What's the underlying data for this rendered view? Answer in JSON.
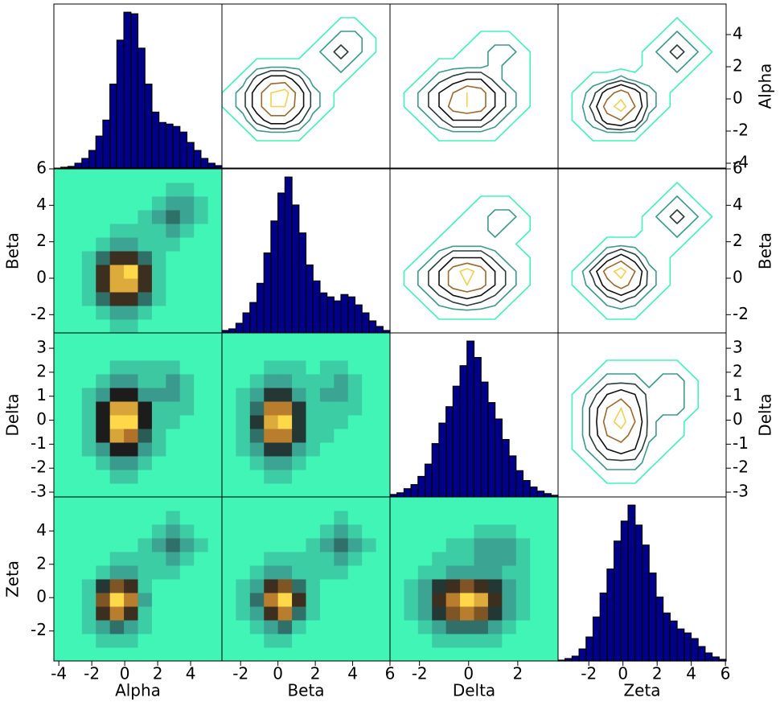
{
  "chart_data": {
    "type": "pairplot",
    "hist_color": "#00008b",
    "cmap": [
      "#40f5b5",
      "#3a9a8e",
      "#1c1c1c",
      "#b0722a",
      "#ffd84a"
    ],
    "contour_levels": [
      0.5,
      1.5,
      2.5,
      4,
      6,
      8
    ],
    "contour_colors": [
      "#40f5b5",
      "#3b9b8f",
      "#2a3e3c",
      "#111111",
      "#a0672b",
      "#f5d050"
    ],
    "variables": [
      {
        "name": "Alpha",
        "lim": [
          -4.3,
          5.9
        ],
        "xticks": [
          -4,
          -2,
          0,
          2,
          4
        ],
        "yticks": [
          -4,
          -2,
          0,
          2,
          4
        ],
        "bins": [
          -4.3,
          -3.875,
          -3.45,
          -3.025,
          -2.6,
          -2.175,
          -1.75,
          -1.325,
          -0.9,
          -0.475,
          -0.05,
          0.375,
          0.8,
          1.225,
          1.65,
          2.075,
          2.5,
          2.925,
          3.35,
          3.775,
          4.2,
          4.625,
          5.05,
          5.475,
          5.9
        ],
        "counts": [
          0,
          1,
          2,
          6,
          12,
          22,
          40,
          60,
          105,
          160,
          195,
          193,
          150,
          105,
          70,
          57,
          55,
          52,
          45,
          32,
          22,
          12,
          6,
          3
        ]
      },
      {
        "name": "Beta",
        "lim": [
          -3,
          6
        ],
        "xticks": [
          -2,
          0,
          2,
          4,
          6
        ],
        "yticks": [
          -2,
          0,
          2,
          4,
          6
        ],
        "bins": [
          -3,
          -2.625,
          -2.25,
          -1.875,
          -1.5,
          -1.125,
          -0.75,
          -0.375,
          0,
          0.375,
          0.75,
          1.125,
          1.5,
          1.875,
          2.25,
          2.625,
          3,
          3.375,
          3.75,
          4.125,
          4.5,
          4.875,
          5.25,
          5.625,
          6
        ],
        "counts": [
          3,
          5,
          12,
          25,
          38,
          62,
          100,
          140,
          175,
          195,
          160,
          125,
          85,
          65,
          50,
          45,
          40,
          48,
          45,
          35,
          25,
          15,
          8,
          3
        ]
      },
      {
        "name": "Delta",
        "lim": [
          -3.2,
          3.64
        ],
        "xticks": [
          -2,
          0,
          2
        ],
        "yticks": [
          -3,
          -2,
          -1,
          0,
          1,
          2,
          3
        ],
        "bins": [
          -3.2,
          -2.915,
          -2.63,
          -2.345,
          -2.06,
          -1.775,
          -1.49,
          -1.205,
          -0.92,
          -0.635,
          -0.35,
          -0.065,
          0.22,
          0.505,
          0.79,
          1.075,
          1.36,
          1.645,
          1.93,
          2.215,
          2.5,
          2.785,
          3.07,
          3.355,
          3.64
        ],
        "counts": [
          3,
          5,
          10,
          15,
          25,
          40,
          65,
          90,
          110,
          135,
          160,
          190,
          170,
          140,
          115,
          95,
          70,
          50,
          32,
          20,
          12,
          7,
          4,
          2
        ]
      },
      {
        "name": "Zeta",
        "lim": [
          -3.8,
          6.04
        ],
        "xticks": [
          -2,
          0,
          2,
          4,
          6
        ],
        "yticks": [
          -2,
          0,
          2,
          4
        ],
        "bins": [
          -3.8,
          -3.39,
          -2.98,
          -2.57,
          -2.16,
          -1.75,
          -1.34,
          -0.93,
          -0.52,
          -0.11,
          0.3,
          0.71,
          1.12,
          1.53,
          1.94,
          2.35,
          2.76,
          3.17,
          3.58,
          3.99,
          4.4,
          4.81,
          5.22,
          5.63,
          6.04
        ],
        "counts": [
          1,
          3,
          6,
          15,
          30,
          55,
          85,
          115,
          150,
          175,
          195,
          170,
          145,
          110,
          80,
          60,
          50,
          40,
          35,
          28,
          18,
          10,
          5,
          2
        ]
      }
    ],
    "pairs": [
      {
        "x": 0,
        "y": 1,
        "counts": [
          [
            0,
            0,
            0,
            0,
            1,
            1,
            0,
            0,
            0,
            0,
            0,
            0
          ],
          [
            0,
            0,
            0,
            1,
            2,
            2,
            1,
            0,
            0,
            0,
            0,
            0
          ],
          [
            0,
            0,
            1,
            3,
            5,
            5,
            3,
            1,
            0,
            0,
            0,
            0
          ],
          [
            0,
            0,
            1,
            5,
            8,
            8,
            5,
            1,
            0,
            0,
            0,
            0
          ],
          [
            0,
            0,
            1,
            5,
            8,
            9,
            5,
            1,
            0,
            0,
            0,
            0
          ],
          [
            0,
            0,
            1,
            3,
            5,
            5,
            3,
            1,
            0,
            0,
            0,
            0
          ],
          [
            0,
            0,
            0,
            1,
            2,
            2,
            1,
            1,
            1,
            0,
            0,
            0
          ],
          [
            0,
            0,
            0,
            0,
            1,
            1,
            1,
            1,
            2,
            1,
            0,
            0
          ],
          [
            0,
            0,
            0,
            0,
            0,
            0,
            1,
            2,
            3,
            2,
            1,
            0
          ],
          [
            0,
            0,
            0,
            0,
            0,
            0,
            0,
            1,
            2,
            2,
            1,
            0
          ],
          [
            0,
            0,
            0,
            0,
            0,
            0,
            0,
            0,
            1,
            1,
            0,
            0
          ],
          [
            0,
            0,
            0,
            0,
            0,
            0,
            0,
            0,
            0,
            0,
            0,
            0
          ]
        ]
      },
      {
        "x": 0,
        "y": 2,
        "counts": [
          [
            0,
            0,
            0,
            0,
            0,
            0,
            0,
            0,
            0,
            0,
            0,
            0
          ],
          [
            0,
            0,
            0,
            0,
            1,
            1,
            0,
            0,
            0,
            0,
            0,
            0
          ],
          [
            0,
            0,
            0,
            1,
            2,
            2,
            1,
            0,
            0,
            0,
            0,
            0
          ],
          [
            0,
            0,
            1,
            2,
            4,
            4,
            2,
            1,
            0,
            0,
            0,
            0
          ],
          [
            0,
            0,
            1,
            4,
            7,
            6,
            3,
            1,
            0,
            0,
            0,
            0
          ],
          [
            0,
            0,
            1,
            4,
            8,
            8,
            4,
            1,
            1,
            0,
            0,
            0
          ],
          [
            0,
            0,
            1,
            4,
            7,
            7,
            4,
            1,
            1,
            1,
            0,
            0
          ],
          [
            0,
            0,
            1,
            2,
            4,
            4,
            2,
            2,
            2,
            1,
            0,
            0
          ],
          [
            0,
            0,
            0,
            1,
            2,
            2,
            1,
            1,
            2,
            1,
            0,
            0
          ],
          [
            0,
            0,
            0,
            0,
            1,
            1,
            1,
            1,
            1,
            0,
            0,
            0
          ],
          [
            0,
            0,
            0,
            0,
            0,
            0,
            0,
            0,
            0,
            0,
            0,
            0
          ],
          [
            0,
            0,
            0,
            0,
            0,
            0,
            0,
            0,
            0,
            0,
            0,
            0
          ]
        ]
      },
      {
        "x": 1,
        "y": 2,
        "counts": [
          [
            0,
            0,
            0,
            0,
            0,
            0,
            0,
            0,
            0,
            0,
            0,
            0
          ],
          [
            0,
            0,
            0,
            1,
            1,
            0,
            0,
            0,
            0,
            0,
            0,
            0
          ],
          [
            0,
            0,
            1,
            2,
            2,
            1,
            0,
            0,
            0,
            0,
            0,
            0
          ],
          [
            0,
            1,
            2,
            4,
            4,
            2,
            1,
            0,
            0,
            0,
            0,
            0
          ],
          [
            0,
            1,
            3,
            7,
            7,
            4,
            1,
            1,
            0,
            0,
            0,
            0
          ],
          [
            0,
            1,
            4,
            8,
            9,
            4,
            1,
            1,
            1,
            0,
            0,
            0
          ],
          [
            0,
            1,
            3,
            7,
            7,
            4,
            1,
            1,
            1,
            1,
            0,
            0
          ],
          [
            0,
            1,
            2,
            4,
            4,
            2,
            1,
            2,
            2,
            1,
            0,
            0
          ],
          [
            0,
            0,
            1,
            2,
            2,
            1,
            1,
            1,
            2,
            1,
            0,
            0
          ],
          [
            0,
            0,
            0,
            1,
            1,
            1,
            0,
            1,
            1,
            0,
            0,
            0
          ],
          [
            0,
            0,
            0,
            0,
            0,
            0,
            0,
            0,
            0,
            0,
            0,
            0
          ],
          [
            0,
            0,
            0,
            0,
            0,
            0,
            0,
            0,
            0,
            0,
            0,
            0
          ]
        ]
      },
      {
        "x": 0,
        "y": 3,
        "counts": [
          [
            0,
            0,
            0,
            0,
            0,
            0,
            0,
            0,
            0,
            0,
            0,
            0
          ],
          [
            0,
            0,
            0,
            1,
            1,
            1,
            0,
            0,
            0,
            0,
            0,
            0
          ],
          [
            0,
            0,
            1,
            2,
            3,
            2,
            1,
            0,
            0,
            0,
            0,
            0
          ],
          [
            0,
            0,
            1,
            5,
            7,
            5,
            1,
            0,
            0,
            0,
            0,
            0
          ],
          [
            0,
            0,
            1,
            6,
            9,
            7,
            2,
            0,
            0,
            0,
            0,
            0
          ],
          [
            0,
            0,
            1,
            4,
            6,
            5,
            1,
            0,
            0,
            0,
            0,
            0
          ],
          [
            0,
            0,
            0,
            1,
            2,
            2,
            1,
            1,
            1,
            0,
            0,
            0
          ],
          [
            0,
            0,
            0,
            0,
            1,
            1,
            1,
            1,
            2,
            1,
            0,
            0
          ],
          [
            0,
            0,
            0,
            0,
            0,
            0,
            1,
            2,
            3,
            2,
            1,
            0
          ],
          [
            0,
            0,
            0,
            0,
            0,
            0,
            0,
            1,
            2,
            1,
            0,
            0
          ],
          [
            0,
            0,
            0,
            0,
            0,
            0,
            0,
            0,
            1,
            0,
            0,
            0
          ],
          [
            0,
            0,
            0,
            0,
            0,
            0,
            0,
            0,
            0,
            0,
            0,
            0
          ]
        ]
      },
      {
        "x": 1,
        "y": 3,
        "counts": [
          [
            0,
            0,
            0,
            0,
            0,
            0,
            0,
            0,
            0,
            0,
            0,
            0
          ],
          [
            0,
            0,
            0,
            1,
            1,
            0,
            0,
            0,
            0,
            0,
            0,
            0
          ],
          [
            0,
            0,
            1,
            2,
            3,
            1,
            0,
            0,
            0,
            0,
            0,
            0
          ],
          [
            0,
            1,
            2,
            5,
            7,
            3,
            1,
            0,
            0,
            0,
            0,
            0
          ],
          [
            0,
            1,
            3,
            7,
            9,
            5,
            1,
            0,
            0,
            0,
            0,
            0
          ],
          [
            0,
            1,
            2,
            5,
            6,
            3,
            1,
            0,
            0,
            0,
            0,
            0
          ],
          [
            0,
            0,
            1,
            2,
            2,
            1,
            1,
            1,
            1,
            0,
            0,
            0
          ],
          [
            0,
            0,
            0,
            1,
            1,
            1,
            1,
            1,
            2,
            1,
            0,
            0
          ],
          [
            0,
            0,
            0,
            0,
            0,
            0,
            1,
            2,
            3,
            2,
            1,
            0
          ],
          [
            0,
            0,
            0,
            0,
            0,
            0,
            0,
            1,
            2,
            1,
            0,
            0
          ],
          [
            0,
            0,
            0,
            0,
            0,
            0,
            0,
            0,
            1,
            0,
            0,
            0
          ],
          [
            0,
            0,
            0,
            0,
            0,
            0,
            0,
            0,
            0,
            0,
            0,
            0
          ]
        ]
      },
      {
        "x": 2,
        "y": 3,
        "counts": [
          [
            0,
            0,
            0,
            0,
            0,
            0,
            0,
            0,
            0,
            0,
            0,
            0
          ],
          [
            0,
            0,
            0,
            1,
            1,
            1,
            1,
            1,
            0,
            0,
            0,
            0
          ],
          [
            0,
            0,
            1,
            2,
            3,
            3,
            3,
            2,
            1,
            0,
            0,
            0
          ],
          [
            0,
            1,
            2,
            4,
            6,
            7,
            6,
            4,
            2,
            1,
            0,
            0
          ],
          [
            0,
            1,
            2,
            5,
            7,
            9,
            8,
            5,
            2,
            1,
            0,
            0
          ],
          [
            0,
            1,
            2,
            4,
            5,
            6,
            5,
            4,
            2,
            1,
            0,
            0
          ],
          [
            0,
            0,
            1,
            1,
            2,
            2,
            2,
            2,
            1,
            1,
            0,
            0
          ],
          [
            0,
            0,
            0,
            1,
            1,
            1,
            2,
            2,
            2,
            1,
            0,
            0
          ],
          [
            0,
            0,
            0,
            0,
            1,
            1,
            2,
            2,
            2,
            1,
            0,
            0
          ],
          [
            0,
            0,
            0,
            0,
            0,
            0,
            1,
            1,
            1,
            0,
            0,
            0
          ],
          [
            0,
            0,
            0,
            0,
            0,
            0,
            0,
            0,
            0,
            0,
            0,
            0
          ],
          [
            0,
            0,
            0,
            0,
            0,
            0,
            0,
            0,
            0,
            0,
            0,
            0
          ]
        ]
      }
    ]
  }
}
